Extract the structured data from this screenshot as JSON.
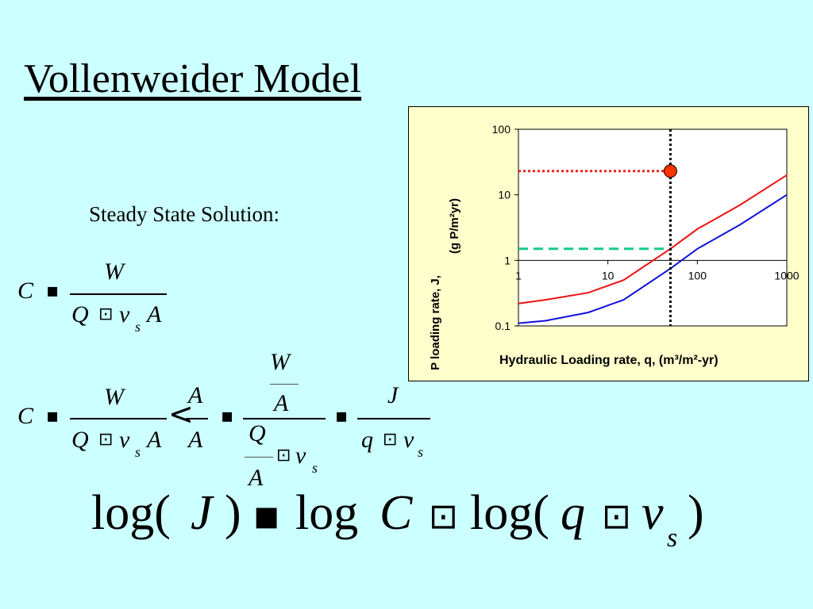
{
  "slide": {
    "title": "Vollenweider Model",
    "subtitle": "Steady State Solution:"
  },
  "equations": {
    "eq1": {
      "lhs": "C",
      "num": "W",
      "den_q": "Q",
      "den_v": "v",
      "den_sub": "s",
      "den_a": "A"
    },
    "eq2": {
      "lhs": "C",
      "f1_num": "W",
      "f1_den_q": "Q",
      "f1_den_v": "v",
      "f1_den_sub": "s",
      "f1_den_a": "A",
      "mult_num": "A",
      "mult_den": "A",
      "f2_num_top": "W",
      "f2_num_bot": "A",
      "f2_den_top": "Q",
      "f2_den_bot": "A",
      "f2_den_v": "v",
      "f2_den_sub": "s",
      "f3_num": "J",
      "f3_den_q": "q",
      "f3_den_v": "v",
      "f3_den_sub": "s"
    },
    "eq3": {
      "log1": "log(",
      "J": "J",
      "close1": ")",
      "log2": "log",
      "C": "C",
      "log3": "log(",
      "q": "q",
      "v": "v",
      "sub": "s",
      "close2": ")"
    }
  },
  "colors": {
    "background": "#ccffff",
    "chart_background": "#ffffcc",
    "series_red": "#ee1111",
    "series_blue": "#1111dd",
    "red_guide": "#ee2222",
    "green_guide": "#11cc88",
    "marker_fill": "#ff3300"
  },
  "chart_data": {
    "type": "line",
    "x_scale": "log",
    "y_scale": "log",
    "xlim": [
      1,
      1000
    ],
    "ylim": [
      0.1,
      100
    ],
    "xlabel": "Hydraulic Loading rate, q, (m³/m²-yr)",
    "ylabel_line1": "P loading rate, J,",
    "ylabel_line2": "(g P/m²yr)",
    "xticks": [
      1,
      10,
      100,
      1000
    ],
    "xtick_labels": [
      "1",
      "10",
      "100",
      "1000"
    ],
    "yticks": [
      0.1,
      1,
      10,
      100
    ],
    "ytick_labels": [
      "0.1",
      "1",
      "10",
      "100"
    ],
    "grid": false,
    "series": [
      {
        "color": "#ee1111",
        "x": [
          1,
          2,
          6,
          15,
          50,
          100,
          300,
          1000
        ],
        "y": [
          0.22,
          0.25,
          0.32,
          0.5,
          1.5,
          3,
          7,
          20
        ]
      },
      {
        "color": "#1111dd",
        "x": [
          1,
          2,
          6,
          15,
          50,
          100,
          300,
          1000
        ],
        "y": [
          0.11,
          0.12,
          0.16,
          0.25,
          0.75,
          1.5,
          3.5,
          10
        ]
      }
    ],
    "annotations": {
      "vertical_line_x": 50,
      "marker": {
        "x": 50,
        "y": 23
      },
      "red_guide_y": 23,
      "green_guide_y": 1.5
    }
  }
}
